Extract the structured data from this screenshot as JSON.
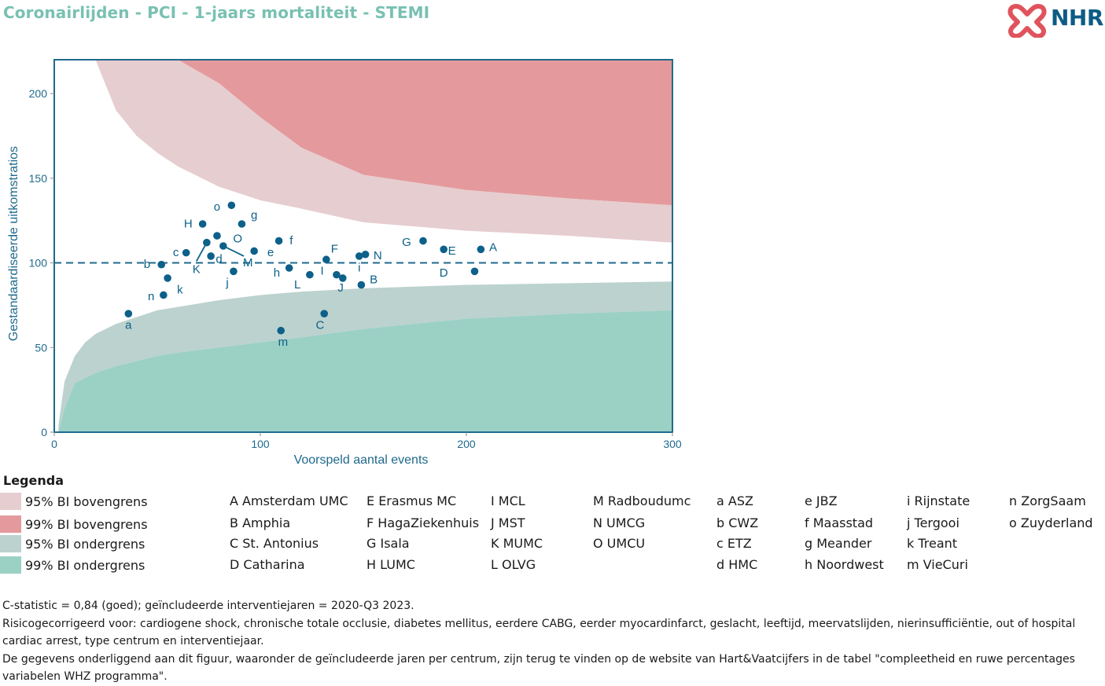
{
  "title": "Coronairlijden - PCI - 1-jaars mortaliteit - STEMI",
  "logo": {
    "text": "NHR",
    "icon": "nhr-heart-logo-icon"
  },
  "colors": {
    "title": "#79c1b2",
    "upper95": "#e6cdd0",
    "upper99": "#e49a9c",
    "lower95": "#bcd2ce",
    "lower99": "#9bd0c5",
    "points": "#0c6089",
    "axis": "#1f6a8c"
  },
  "chart_data": {
    "type": "scatter",
    "title": "",
    "xlabel": "Voorspeld aantal events",
    "ylabel": "Gestandaardiseerde uitkomstratios",
    "xlim": [
      0,
      300
    ],
    "ylim": [
      0,
      220
    ],
    "xticks": [
      0,
      100,
      200,
      300
    ],
    "yticks": [
      0,
      50,
      100,
      150,
      200
    ],
    "reference_line": 100,
    "bands": {
      "x": [
        2,
        5,
        10,
        15,
        20,
        30,
        40,
        50,
        60,
        80,
        100,
        120,
        150,
        200,
        250,
        300
      ],
      "upper95": [
        220,
        220,
        220,
        220,
        220,
        190,
        175,
        165,
        157,
        145,
        137,
        132,
        124,
        119,
        116,
        112
      ],
      "upper99": [
        220,
        220,
        220,
        220,
        220,
        220,
        220,
        220,
        220,
        206,
        186,
        168,
        152,
        143,
        138,
        134
      ],
      "lower95": [
        4,
        30,
        45,
        53,
        58,
        64,
        68,
        72,
        74,
        78,
        81,
        83,
        85,
        87,
        88,
        89
      ],
      "lower99": [
        0,
        14,
        29,
        32,
        35,
        39,
        42,
        45,
        47,
        50,
        53,
        56,
        61,
        67,
        70,
        72
      ]
    },
    "points": [
      {
        "x": 207,
        "y": 108,
        "label": "A",
        "lx": 213,
        "ly": 107
      },
      {
        "x": 149,
        "y": 87,
        "label": "B",
        "lx": 155,
        "ly": 88
      },
      {
        "x": 131,
        "y": 70,
        "label": "C",
        "lx": 129,
        "ly": 61
      },
      {
        "x": 204,
        "y": 95,
        "label": "D",
        "lx": 189,
        "ly": 92
      },
      {
        "x": 189,
        "y": 108,
        "label": "E",
        "lx": 193,
        "ly": 105
      },
      {
        "x": 132,
        "y": 102,
        "label": "F",
        "lx": 136,
        "ly": 106
      },
      {
        "x": 179,
        "y": 113,
        "label": "G",
        "lx": 171,
        "ly": 110
      },
      {
        "x": 72,
        "y": 123,
        "label": "H",
        "lx": 65,
        "ly": 121
      },
      {
        "x": 140,
        "y": 91,
        "label": "J",
        "lx": 139,
        "ly": 83
      },
      {
        "x": 74,
        "y": 112,
        "label": "K",
        "lx": 69,
        "ly": 94
      },
      {
        "x": 114,
        "y": 97,
        "label": "L",
        "lx": 118,
        "ly": 85
      },
      {
        "x": 82,
        "y": 110,
        "label": "M",
        "lx": 94,
        "ly": 98
      },
      {
        "x": 151,
        "y": 105,
        "label": "N",
        "lx": 157,
        "ly": 102
      },
      {
        "x": 79,
        "y": 116,
        "label": "O",
        "lx": 89,
        "ly": 112
      },
      {
        "x": 36,
        "y": 70,
        "label": "a",
        "lx": 36,
        "ly": 61
      },
      {
        "x": 52,
        "y": 99,
        "label": "b",
        "lx": 45,
        "ly": 97
      },
      {
        "x": 64,
        "y": 106,
        "label": "c",
        "lx": 59,
        "ly": 104
      },
      {
        "x": 76,
        "y": 104,
        "label": "d",
        "lx": 80,
        "ly": 100
      },
      {
        "x": 97,
        "y": 107,
        "label": "e",
        "lx": 105,
        "ly": 104
      },
      {
        "x": 109,
        "y": 113,
        "label": "f",
        "lx": 115,
        "ly": 111
      },
      {
        "x": 91,
        "y": 123,
        "label": "g",
        "lx": 97,
        "ly": 126
      },
      {
        "x": 124,
        "y": 93,
        "label": "h",
        "lx": 108,
        "ly": 92
      },
      {
        "x": 148,
        "y": 104,
        "label": "i",
        "lx": 148,
        "ly": 95
      },
      {
        "x": 137,
        "y": 93,
        "label": "I",
        "lx": 130,
        "ly": 93
      },
      {
        "x": 87,
        "y": 95,
        "label": "j",
        "lx": 84,
        "ly": 86
      },
      {
        "x": 55,
        "y": 91,
        "label": "k",
        "lx": 61,
        "ly": 82
      },
      {
        "x": 110,
        "y": 60,
        "label": "m",
        "lx": 111,
        "ly": 51
      },
      {
        "x": 53,
        "y": 81,
        "label": "n",
        "lx": 47,
        "ly": 78
      },
      {
        "x": 86,
        "y": 134,
        "label": "o",
        "lx": 79,
        "ly": 131
      }
    ],
    "leader_lines": [
      {
        "x1": 74,
        "y1": 112,
        "x2": 69,
        "y2": 101
      },
      {
        "x1": 82,
        "y1": 110,
        "x2": 92,
        "y2": 104
      }
    ]
  },
  "legend": {
    "title": "Legenda",
    "bands": [
      {
        "label": "95% BI bovengrens",
        "color": "#e6cdd0"
      },
      {
        "label": "99% BI bovengrens",
        "color": "#e49a9c"
      },
      {
        "label": "95% BI ondergrens",
        "color": "#bcd2ce"
      },
      {
        "label": "99% BI ondergrens",
        "color": "#9bd0c5"
      }
    ],
    "centers": [
      [
        "A Amsterdam UMC",
        "B Amphia",
        "C St. Antonius",
        "D Catharina"
      ],
      [
        "E Erasmus MC",
        "F HagaZiekenhuis",
        "G Isala",
        "H LUMC"
      ],
      [
        "I MCL",
        "J MST",
        "K MUMC",
        "L OLVG"
      ],
      [
        "M Radboudumc",
        "N UMCG",
        "O UMCU"
      ],
      [
        "a ASZ",
        "b CWZ",
        "c ETZ",
        "d HMC"
      ],
      [
        "e JBZ",
        "f Maasstad",
        "g Meander",
        "h Noordwest"
      ],
      [
        "i Rijnstate",
        "j Tergooi",
        "k Treant",
        "m VieCuri"
      ],
      [
        "n ZorgSaam",
        "o Zuyderland"
      ]
    ]
  },
  "footnotes": [
    "C-statistic =  0,84 (goed); geïncludeerde interventiejaren = 2020-Q3 2023.",
    "Risicogecorrigeerd voor: cardiogene shock, chronische totale occlusie, diabetes mellitus, eerdere CABG, eerder myocardinfarct, geslacht, leeftijd, meervatslijden, nierinsufficiëntie, out of hospital cardiac arrest, type centrum en interventiejaar.",
    "De gegevens onderliggend aan dit figuur, waaronder de geïncludeerde jaren per centrum, zijn terug te vinden op de website van Hart&Vaatcijfers in de tabel \"compleetheid en ruwe percentages variabelen WHZ programma\"."
  ]
}
